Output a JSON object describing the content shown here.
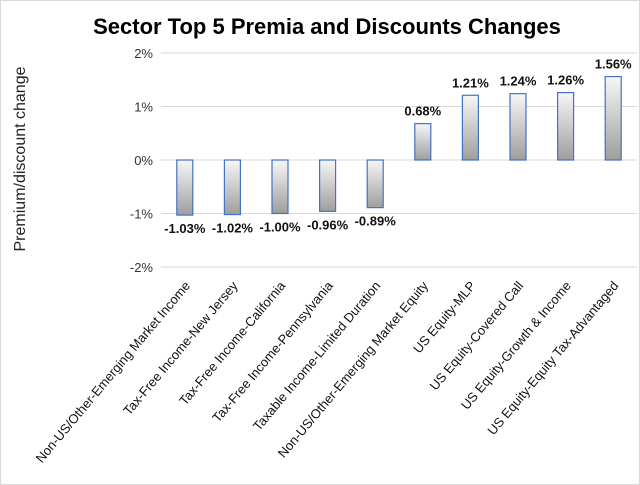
{
  "chart_data": {
    "type": "bar",
    "title": "Sector Top 5 Premia and Discounts Changes",
    "xlabel": "",
    "ylabel": "Premium/discount change",
    "ylim": [
      -2,
      2
    ],
    "yticks": [
      2,
      1,
      0,
      -1,
      -2
    ],
    "ytick_labels": [
      "2%",
      "1%",
      "0%",
      "-1%",
      "-2%"
    ],
    "grid": true,
    "categories": [
      "Non-US/Other-Emerging Market Income",
      "Tax-Free Income-New Jersey",
      "Tax-Free Income-California",
      "Tax-Free Income-Pennsylvania",
      "Taxable Income-Limited Duration",
      "Non-US/Other-Emerging Market Equity",
      "US Equity-MLP",
      "US Equity-Covered Call",
      "US Equity-Growth & Income",
      "US Equity-Equity Tax-Advantaged"
    ],
    "values": [
      -1.03,
      -1.02,
      -1.0,
      -0.96,
      -0.89,
      0.68,
      1.21,
      1.24,
      1.26,
      1.56
    ],
    "data_labels": [
      "-1.03%",
      "-1.02%",
      "-1.00%",
      "-0.96%",
      "-0.89%",
      "0.68%",
      "1.21%",
      "1.24%",
      "1.26%",
      "1.56%"
    ],
    "colors": {
      "bar_fill_top": "#f7f7f7",
      "bar_fill_bottom": "#9e9e9e",
      "bar_stroke": "#4472c4",
      "grid": "#d9d9d9"
    }
  }
}
